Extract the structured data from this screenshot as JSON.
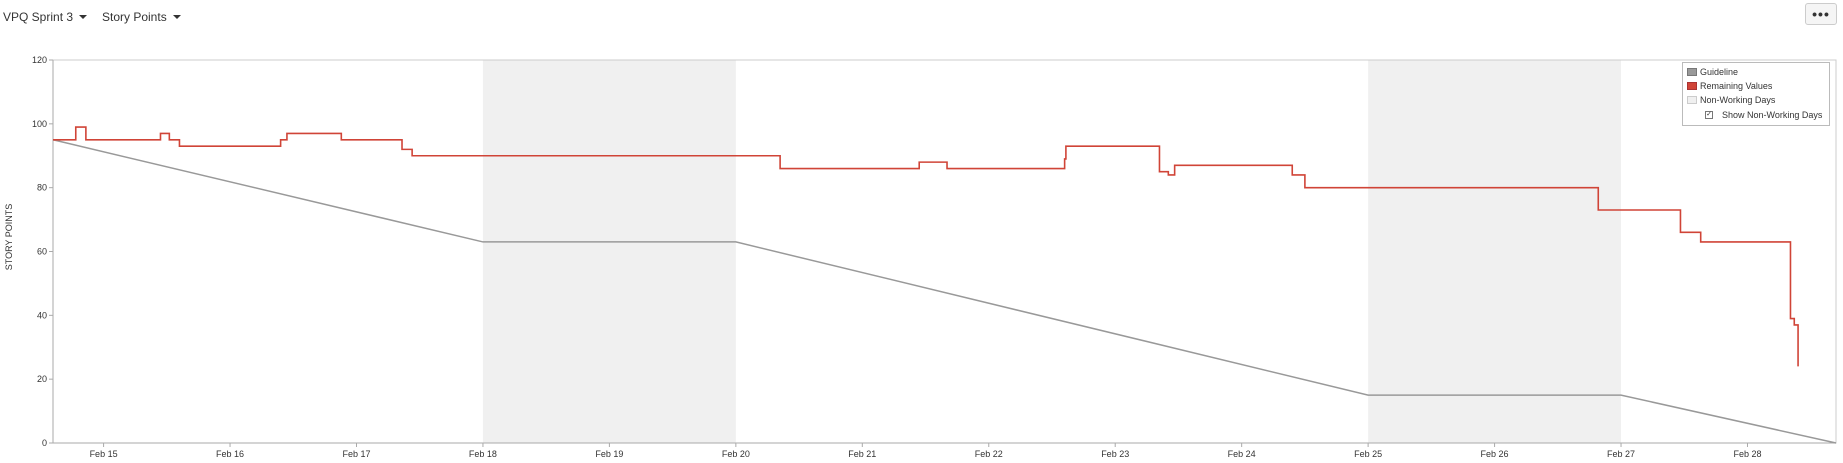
{
  "toolbar": {
    "sprint_label": "VPQ Sprint 3",
    "estimation_label": "Story Points",
    "more_label": "•••"
  },
  "colors": {
    "guideline": "#999999",
    "remaining": "#d04437",
    "non_working": "#f0f0f0",
    "axis": "#aaaaaa"
  },
  "legend": {
    "guideline": "Guideline",
    "remaining": "Remaining Values",
    "non_working": "Non-Working Days",
    "show_non_working": "Show Non-Working Days",
    "show_non_working_checked": true
  },
  "chart_data": {
    "type": "line",
    "ylabel": "STORY POINTS",
    "ylim": [
      0,
      120
    ],
    "yticks": [
      0,
      20,
      40,
      60,
      80,
      100,
      120
    ],
    "xlim": [
      14.6,
      28.7
    ],
    "xtick_positions": [
      15,
      16,
      17,
      18,
      19,
      20,
      21,
      22,
      23,
      24,
      25,
      26,
      27,
      28
    ],
    "xtick_labels": [
      "Feb 15",
      "Feb 16",
      "Feb 17",
      "Feb 18",
      "Feb 19",
      "Feb 20",
      "Feb 21",
      "Feb 22",
      "Feb 23",
      "Feb 24",
      "Feb 25",
      "Feb 26",
      "Feb 27",
      "Feb 28"
    ],
    "non_working_days": [
      [
        18,
        20
      ],
      [
        25,
        27
      ]
    ],
    "show_non_working_days": true,
    "legend_position": "top-right",
    "series": [
      {
        "name": "Guideline",
        "points": [
          [
            14.6,
            95
          ],
          [
            18,
            63
          ],
          [
            20,
            63
          ],
          [
            25,
            15
          ],
          [
            27,
            15
          ],
          [
            28.7,
            0
          ]
        ]
      },
      {
        "name": "Remaining Values",
        "step": true,
        "points": [
          [
            14.6,
            95
          ],
          [
            14.78,
            99
          ],
          [
            14.86,
            95
          ],
          [
            15.45,
            97
          ],
          [
            15.52,
            95
          ],
          [
            15.6,
            93
          ],
          [
            16.4,
            95
          ],
          [
            16.45,
            97
          ],
          [
            16.88,
            95
          ],
          [
            17.36,
            92
          ],
          [
            17.44,
            90
          ],
          [
            20.35,
            86
          ],
          [
            21.45,
            88
          ],
          [
            21.67,
            86
          ],
          [
            22.6,
            89
          ],
          [
            22.61,
            93
          ],
          [
            23.35,
            85
          ],
          [
            23.42,
            84
          ],
          [
            23.47,
            87
          ],
          [
            24.4,
            84
          ],
          [
            24.5,
            80
          ],
          [
            26.82,
            73
          ],
          [
            27.47,
            66
          ],
          [
            27.63,
            63
          ],
          [
            28.34,
            39
          ],
          [
            28.37,
            37
          ],
          [
            28.4,
            24
          ]
        ]
      }
    ]
  }
}
